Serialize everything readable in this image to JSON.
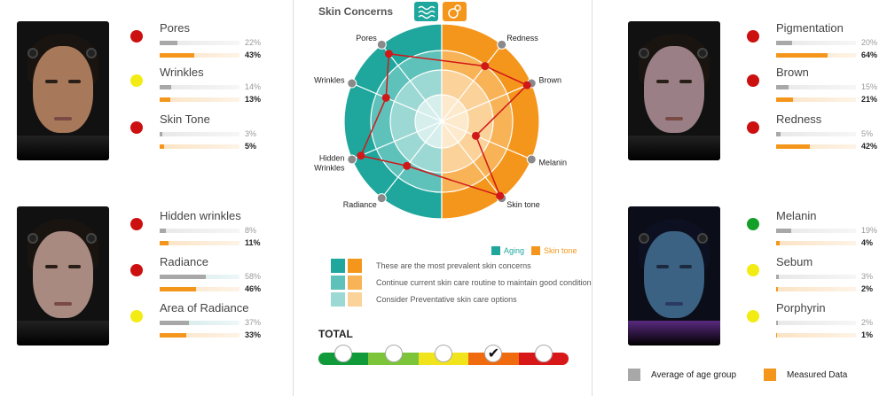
{
  "colors": {
    "red": "#cc1010",
    "yellow": "#f2ec14",
    "green": "#14a028",
    "aging": "#1fa79d",
    "skin_tone": "#f5961c"
  },
  "metrics": [
    {
      "label": "Pores",
      "avg": "22%",
      "measured": "43%",
      "avg_value": 22,
      "measured_value": 43,
      "status": "red"
    },
    {
      "label": "Wrinkles",
      "avg": "14%",
      "measured": "13%",
      "avg_value": 14,
      "measured_value": 13,
      "status": "yellow"
    },
    {
      "label": "Skin Tone",
      "avg": "3%",
      "measured": "5%",
      "avg_value": 3,
      "measured_value": 5,
      "status": "red"
    },
    {
      "label": "Hidden wrinkles",
      "avg": "8%",
      "measured": "11%",
      "avg_value": 8,
      "measured_value": 11,
      "status": "red"
    },
    {
      "label": "Radiance",
      "avg": "58%",
      "measured": "46%",
      "avg_value": 58,
      "measured_value": 46,
      "status": "red"
    },
    {
      "label": "Area of Radiance",
      "avg": "37%",
      "measured": "33%",
      "avg_value": 37,
      "measured_value": 33,
      "status": "yellow"
    },
    {
      "label": "Pigmentation",
      "avg": "20%",
      "measured": "64%",
      "avg_value": 20,
      "measured_value": 64,
      "status": "red"
    },
    {
      "label": "Brown",
      "avg": "15%",
      "measured": "21%",
      "avg_value": 15,
      "measured_value": 21,
      "status": "red"
    },
    {
      "label": "Redness",
      "avg": "5%",
      "measured": "42%",
      "avg_value": 5,
      "measured_value": 42,
      "status": "red"
    },
    {
      "label": "Melanin",
      "avg": "19%",
      "measured": "4%",
      "avg_value": 19,
      "measured_value": 4,
      "status": "green"
    },
    {
      "label": "Sebum",
      "avg": "3%",
      "measured": "2%",
      "avg_value": 3,
      "measured_value": 2,
      "status": "yellow"
    },
    {
      "label": "Porphyrin",
      "avg": "2%",
      "measured": "1%",
      "avg_value": 2,
      "measured_value": 1,
      "status": "yellow"
    }
  ],
  "concerns": {
    "title": "Skin Concerns",
    "legend_aging": "Aging",
    "legend_skin_tone": "Skin tone",
    "key": [
      "These are the most prevalent skin concerns",
      "Continue current skin care routine to maintain good condition",
      "Consider Preventative skin care options"
    ]
  },
  "chart_data": {
    "type": "radar",
    "title": "Skin Concerns",
    "axes": [
      "Pores",
      "Wrinkles",
      "Hidden Wrinkles",
      "Radiance",
      "Redness",
      "Brown",
      "Melanin",
      "Skin tone"
    ],
    "groups": [
      {
        "name": "Aging",
        "axes": [
          "Pores",
          "Wrinkles",
          "Hidden Wrinkles",
          "Radiance"
        ]
      },
      {
        "name": "Skin tone",
        "axes": [
          "Redness",
          "Brown",
          "Melanin",
          "Skin tone"
        ]
      }
    ],
    "series": [
      {
        "values": [
          0.88,
          0.62,
          0.9,
          0.58,
          0.72,
          0.95,
          0.38,
          0.97
        ]
      }
    ],
    "rings": 4
  },
  "total": {
    "label": "TOTAL",
    "segments": [
      "#109a3a",
      "#7cc43a",
      "#f2e41c",
      "#f06a10",
      "#d81818"
    ],
    "selected_index": 3,
    "check_glyph": "✔"
  },
  "bottom_legend": {
    "average": "Average of age group",
    "measured": "Measured Data"
  }
}
